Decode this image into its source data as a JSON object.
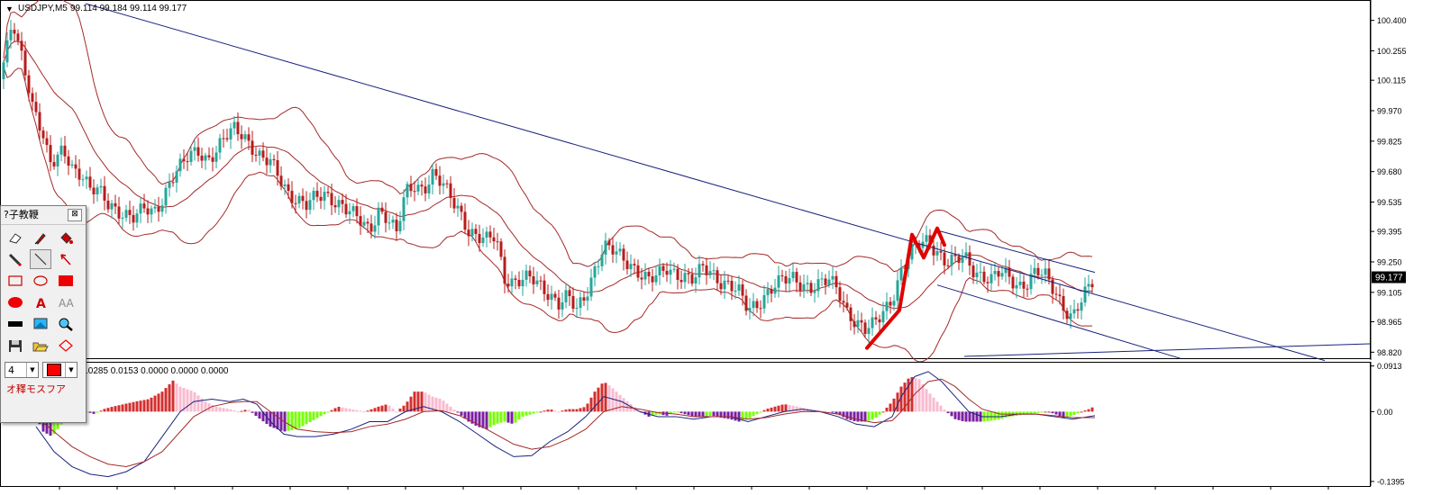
{
  "chart_data": {
    "type": "candlestick",
    "symbol_header": "USDJPY,M5",
    "ohlc_readout": "99.114 99.184 99.114 99.177",
    "price_axis": {
      "ticks": [
        "100.400",
        "100.255",
        "100.115",
        "99.970",
        "99.825",
        "99.680",
        "99.535",
        "99.395",
        "99.250",
        "99.105",
        "98.965",
        "98.820"
      ],
      "range": [
        98.8,
        100.48
      ],
      "current_price": "99.177"
    },
    "price_path": [
      [
        0,
        100.12
      ],
      [
        5,
        100.22
      ],
      [
        10,
        100.3
      ],
      [
        14,
        100.4
      ],
      [
        18,
        100.3
      ],
      [
        22,
        100.25
      ],
      [
        26,
        100.2
      ],
      [
        30,
        100.12
      ],
      [
        36,
        100.0
      ],
      [
        42,
        99.95
      ],
      [
        48,
        99.85
      ],
      [
        55,
        99.72
      ],
      [
        62,
        99.72
      ],
      [
        70,
        99.78
      ],
      [
        80,
        99.7
      ],
      [
        90,
        99.68
      ],
      [
        100,
        99.6
      ],
      [
        110,
        99.58
      ],
      [
        120,
        99.52
      ],
      [
        130,
        99.5
      ],
      [
        140,
        99.48
      ],
      [
        150,
        99.46
      ],
      [
        160,
        99.5
      ],
      [
        170,
        99.48
      ],
      [
        180,
        99.55
      ],
      [
        190,
        99.65
      ],
      [
        200,
        99.7
      ],
      [
        210,
        99.75
      ],
      [
        220,
        99.78
      ],
      [
        230,
        99.74
      ],
      [
        240,
        99.78
      ],
      [
        250,
        99.84
      ],
      [
        260,
        99.88
      ],
      [
        270,
        99.86
      ],
      [
        280,
        99.8
      ],
      [
        290,
        99.74
      ],
      [
        300,
        99.72
      ],
      [
        310,
        99.65
      ],
      [
        320,
        99.58
      ],
      [
        330,
        99.55
      ],
      [
        340,
        99.52
      ],
      [
        350,
        99.55
      ],
      [
        360,
        99.57
      ],
      [
        370,
        99.55
      ],
      [
        380,
        99.52
      ],
      [
        390,
        99.48
      ],
      [
        400,
        99.44
      ],
      [
        410,
        99.4
      ],
      [
        420,
        99.5
      ],
      [
        430,
        99.46
      ],
      [
        440,
        99.38
      ],
      [
        450,
        99.58
      ],
      [
        460,
        99.62
      ],
      [
        470,
        99.6
      ],
      [
        480,
        99.66
      ],
      [
        490,
        99.62
      ],
      [
        500,
        99.56
      ],
      [
        510,
        99.5
      ],
      [
        520,
        99.4
      ],
      [
        530,
        99.36
      ],
      [
        540,
        99.35
      ],
      [
        550,
        99.38
      ],
      [
        560,
        99.18
      ],
      [
        570,
        99.15
      ],
      [
        580,
        99.16
      ],
      [
        590,
        99.17
      ],
      [
        600,
        99.14
      ],
      [
        610,
        99.1
      ],
      [
        620,
        99.05
      ],
      [
        630,
        99.08
      ],
      [
        640,
        99.02
      ],
      [
        650,
        99.1
      ],
      [
        660,
        99.22
      ],
      [
        670,
        99.32
      ],
      [
        680,
        99.3
      ],
      [
        690,
        99.27
      ],
      [
        700,
        99.24
      ],
      [
        710,
        99.2
      ],
      [
        720,
        99.16
      ],
      [
        730,
        99.18
      ],
      [
        740,
        99.22
      ],
      [
        750,
        99.2
      ],
      [
        760,
        99.18
      ],
      [
        770,
        99.16
      ],
      [
        780,
        99.22
      ],
      [
        790,
        99.2
      ],
      [
        800,
        99.16
      ],
      [
        810,
        99.14
      ],
      [
        820,
        99.1
      ],
      [
        830,
        99.02
      ],
      [
        840,
        99.05
      ],
      [
        850,
        99.1
      ],
      [
        860,
        99.14
      ],
      [
        870,
        99.16
      ],
      [
        880,
        99.17
      ],
      [
        890,
        99.15
      ],
      [
        900,
        99.13
      ],
      [
        910,
        99.14
      ],
      [
        920,
        99.16
      ],
      [
        930,
        99.12
      ],
      [
        940,
        99.02
      ],
      [
        950,
        98.96
      ],
      [
        960,
        98.92
      ],
      [
        970,
        98.95
      ],
      [
        980,
        99.02
      ],
      [
        990,
        99.08
      ],
      [
        1000,
        99.2
      ],
      [
        1010,
        99.28
      ],
      [
        1020,
        99.34
      ],
      [
        1030,
        99.36
      ],
      [
        1040,
        99.3
      ],
      [
        1050,
        99.24
      ],
      [
        1060,
        99.25
      ],
      [
        1070,
        99.28
      ],
      [
        1080,
        99.22
      ],
      [
        1090,
        99.18
      ],
      [
        1100,
        99.16
      ],
      [
        1110,
        99.2
      ],
      [
        1120,
        99.18
      ],
      [
        1130,
        99.14
      ],
      [
        1140,
        99.15
      ],
      [
        1150,
        99.2
      ],
      [
        1160,
        99.18
      ],
      [
        1170,
        99.12
      ],
      [
        1180,
        99.04
      ],
      [
        1190,
        98.98
      ],
      [
        1200,
        99.06
      ],
      [
        1210,
        99.14
      ],
      [
        1215,
        99.18
      ]
    ],
    "red_trend_line": [
      [
        962,
        98.84
      ],
      [
        978,
        98.92
      ],
      [
        990,
        98.98
      ],
      [
        998,
        99.02
      ],
      [
        1012,
        99.38
      ],
      [
        1025,
        99.27
      ],
      [
        1040,
        99.41
      ],
      [
        1048,
        99.33
      ]
    ],
    "trendlines": [
      {
        "from": [
          95,
          100.48
        ],
        "to": [
          1470,
          98.78
        ]
      },
      {
        "from": [
          1040,
          99.4
        ],
        "to": [
          1215,
          99.2
        ]
      },
      {
        "from": [
          1040,
          99.14
        ],
        "to": [
          1310,
          98.79
        ]
      },
      {
        "from": [
          1070,
          98.8
        ],
        "to": [
          1520,
          98.86
        ]
      }
    ],
    "osc_header": ".0285 0.0153 0.0000 0.0000 0.0000",
    "osc_axis": {
      "ticks": [
        "0.0913",
        "0.00",
        "-0.1395"
      ],
      "range": [
        -0.145,
        0.096
      ]
    },
    "osc_histogram": [
      [
        0,
        0.0
      ],
      [
        40,
        -0.01
      ],
      [
        48,
        -0.04
      ],
      [
        58,
        -0.05
      ],
      [
        66,
        -0.03
      ],
      [
        75,
        -0.01
      ],
      [
        85,
        -0.005
      ],
      [
        95,
        0.0
      ],
      [
        105,
        -0.005
      ],
      [
        115,
        0.005
      ],
      [
        125,
        0.01
      ],
      [
        135,
        0.014
      ],
      [
        150,
        0.02
      ],
      [
        165,
        0.025
      ],
      [
        180,
        0.04
      ],
      [
        192,
        0.062
      ],
      [
        200,
        0.05
      ],
      [
        215,
        0.04
      ],
      [
        228,
        0.02
      ],
      [
        240,
        0.01
      ],
      [
        255,
        0.005
      ],
      [
        265,
        0.0
      ],
      [
        275,
        0.005
      ],
      [
        285,
        -0.01
      ],
      [
        300,
        -0.03
      ],
      [
        315,
        -0.04
      ],
      [
        330,
        -0.035
      ],
      [
        345,
        -0.02
      ],
      [
        360,
        -0.005
      ],
      [
        375,
        0.01
      ],
      [
        390,
        0.005
      ],
      [
        405,
        0.0
      ],
      [
        420,
        0.01
      ],
      [
        430,
        0.015
      ],
      [
        440,
        0.0
      ],
      [
        450,
        0.015
      ],
      [
        460,
        0.04
      ],
      [
        470,
        0.04
      ],
      [
        480,
        0.03
      ],
      [
        490,
        0.025
      ],
      [
        500,
        0.01
      ],
      [
        510,
        -0.005
      ],
      [
        520,
        -0.02
      ],
      [
        530,
        -0.03
      ],
      [
        540,
        -0.035
      ],
      [
        550,
        -0.025
      ],
      [
        560,
        -0.02
      ],
      [
        570,
        -0.025
      ],
      [
        580,
        -0.01
      ],
      [
        590,
        -0.005
      ],
      [
        600,
        0.0
      ],
      [
        610,
        0.005
      ],
      [
        620,
        0.0
      ],
      [
        630,
        0.005
      ],
      [
        640,
        0.005
      ],
      [
        650,
        0.01
      ],
      [
        660,
        0.04
      ],
      [
        670,
        0.06
      ],
      [
        678,
        0.05
      ],
      [
        690,
        0.03
      ],
      [
        700,
        0.015
      ],
      [
        710,
        0.0
      ],
      [
        720,
        -0.01
      ],
      [
        730,
        -0.005
      ],
      [
        740,
        -0.008
      ],
      [
        750,
        0.0
      ],
      [
        760,
        -0.005
      ],
      [
        770,
        -0.01
      ],
      [
        780,
        -0.01
      ],
      [
        790,
        -0.008
      ],
      [
        800,
        -0.012
      ],
      [
        810,
        -0.015
      ],
      [
        820,
        -0.02
      ],
      [
        830,
        -0.015
      ],
      [
        840,
        -0.005
      ],
      [
        850,
        0.005
      ],
      [
        860,
        0.01
      ],
      [
        870,
        0.015
      ],
      [
        880,
        0.012
      ],
      [
        890,
        0.008
      ],
      [
        900,
        0.005
      ],
      [
        910,
        0.002
      ],
      [
        920,
        0.0
      ],
      [
        930,
        -0.005
      ],
      [
        940,
        -0.015
      ],
      [
        950,
        -0.02
      ],
      [
        960,
        -0.02
      ],
      [
        970,
        -0.015
      ],
      [
        980,
        0.0
      ],
      [
        990,
        0.02
      ],
      [
        1000,
        0.05
      ],
      [
        1010,
        0.07
      ],
      [
        1020,
        0.065
      ],
      [
        1030,
        0.04
      ],
      [
        1040,
        0.02
      ],
      [
        1050,
        0.0
      ],
      [
        1060,
        -0.015
      ],
      [
        1070,
        -0.02
      ],
      [
        1080,
        -0.02
      ],
      [
        1090,
        -0.02
      ],
      [
        1100,
        -0.018
      ],
      [
        1110,
        -0.015
      ],
      [
        1120,
        -0.01
      ],
      [
        1130,
        -0.008
      ],
      [
        1140,
        -0.005
      ],
      [
        1150,
        -0.003
      ],
      [
        1160,
        0.0
      ],
      [
        1170,
        -0.004
      ],
      [
        1180,
        -0.012
      ],
      [
        1190,
        -0.008
      ],
      [
        1200,
        0.0
      ],
      [
        1210,
        0.006
      ],
      [
        1215,
        0.012
      ]
    ],
    "osc_line_1": [
      [
        40,
        -0.03
      ],
      [
        60,
        -0.08
      ],
      [
        80,
        -0.11
      ],
      [
        100,
        -0.125
      ],
      [
        120,
        -0.13
      ],
      [
        140,
        -0.12
      ],
      [
        160,
        -0.1
      ],
      [
        180,
        -0.05
      ],
      [
        200,
        0.0
      ],
      [
        215,
        0.02
      ],
      [
        235,
        0.025
      ],
      [
        255,
        0.02
      ],
      [
        270,
        0.025
      ],
      [
        285,
        0.015
      ],
      [
        300,
        -0.02
      ],
      [
        315,
        -0.045
      ],
      [
        330,
        -0.05
      ],
      [
        350,
        -0.05
      ],
      [
        370,
        -0.045
      ],
      [
        390,
        -0.035
      ],
      [
        410,
        -0.02
      ],
      [
        430,
        -0.02
      ],
      [
        450,
        0.0
      ],
      [
        470,
        0.01
      ],
      [
        490,
        0.0
      ],
      [
        510,
        -0.02
      ],
      [
        530,
        -0.045
      ],
      [
        550,
        -0.07
      ],
      [
        570,
        -0.09
      ],
      [
        590,
        -0.088
      ],
      [
        610,
        -0.06
      ],
      [
        630,
        -0.04
      ],
      [
        650,
        -0.01
      ],
      [
        670,
        0.03
      ],
      [
        690,
        0.02
      ],
      [
        710,
        0.0
      ],
      [
        730,
        -0.01
      ],
      [
        750,
        -0.01
      ],
      [
        770,
        -0.015
      ],
      [
        790,
        -0.01
      ],
      [
        810,
        -0.01
      ],
      [
        830,
        -0.02
      ],
      [
        850,
        -0.01
      ],
      [
        870,
        0.0
      ],
      [
        890,
        0.005
      ],
      [
        910,
        0.0
      ],
      [
        930,
        -0.01
      ],
      [
        950,
        -0.025
      ],
      [
        970,
        -0.03
      ],
      [
        990,
        -0.01
      ],
      [
        1000,
        0.03
      ],
      [
        1015,
        0.07
      ],
      [
        1030,
        0.08
      ],
      [
        1045,
        0.06
      ],
      [
        1060,
        0.03
      ],
      [
        1075,
        0.0
      ],
      [
        1090,
        -0.01
      ],
      [
        1110,
        -0.01
      ],
      [
        1130,
        -0.005
      ],
      [
        1150,
        -0.005
      ],
      [
        1170,
        -0.01
      ],
      [
        1190,
        -0.015
      ],
      [
        1215,
        -0.008
      ]
    ],
    "osc_line_2": [
      [
        40,
        -0.01
      ],
      [
        60,
        -0.04
      ],
      [
        80,
        -0.07
      ],
      [
        100,
        -0.09
      ],
      [
        120,
        -0.105
      ],
      [
        140,
        -0.11
      ],
      [
        160,
        -0.1
      ],
      [
        180,
        -0.08
      ],
      [
        200,
        -0.04
      ],
      [
        215,
        -0.01
      ],
      [
        235,
        0.01
      ],
      [
        255,
        0.018
      ],
      [
        270,
        0.02
      ],
      [
        285,
        0.02
      ],
      [
        300,
        0.0
      ],
      [
        315,
        -0.02
      ],
      [
        330,
        -0.035
      ],
      [
        350,
        -0.04
      ],
      [
        370,
        -0.042
      ],
      [
        390,
        -0.04
      ],
      [
        410,
        -0.03
      ],
      [
        430,
        -0.025
      ],
      [
        450,
        -0.015
      ],
      [
        470,
        0.0
      ],
      [
        490,
        0.002
      ],
      [
        510,
        -0.008
      ],
      [
        530,
        -0.025
      ],
      [
        550,
        -0.045
      ],
      [
        570,
        -0.065
      ],
      [
        590,
        -0.075
      ],
      [
        610,
        -0.07
      ],
      [
        630,
        -0.055
      ],
      [
        650,
        -0.035
      ],
      [
        670,
        0.0
      ],
      [
        690,
        0.01
      ],
      [
        710,
        0.005
      ],
      [
        730,
        -0.002
      ],
      [
        750,
        -0.005
      ],
      [
        770,
        -0.01
      ],
      [
        790,
        -0.01
      ],
      [
        810,
        -0.01
      ],
      [
        830,
        -0.015
      ],
      [
        850,
        -0.012
      ],
      [
        870,
        -0.005
      ],
      [
        890,
        0.0
      ],
      [
        910,
        0.0
      ],
      [
        930,
        -0.005
      ],
      [
        950,
        -0.015
      ],
      [
        970,
        -0.022
      ],
      [
        990,
        -0.018
      ],
      [
        1000,
        0.0
      ],
      [
        1015,
        0.035
      ],
      [
        1030,
        0.06
      ],
      [
        1045,
        0.065
      ],
      [
        1060,
        0.05
      ],
      [
        1075,
        0.025
      ],
      [
        1090,
        0.005
      ],
      [
        1110,
        -0.005
      ],
      [
        1130,
        -0.005
      ],
      [
        1150,
        -0.005
      ],
      [
        1170,
        -0.008
      ],
      [
        1190,
        -0.012
      ],
      [
        1215,
        -0.012
      ]
    ],
    "colors": {
      "candle_up": "#26a69a",
      "candle_down": "#b71c1c",
      "band": "#a52a2a",
      "trendline": "#1a237e",
      "red_line": "#e00000",
      "hist_pos_strong": "#d32f2f",
      "hist_pos_weak": "#f8bbd0",
      "hist_neg_strong": "#7b1fa2",
      "hist_neg_weak": "#76ff03",
      "osc_line_1": "#1a237e",
      "osc_line_2": "#a52a2a"
    }
  },
  "toolbox": {
    "title": "?子教鞭",
    "close_glyph": "⊠",
    "width_value": "4",
    "label": "オ釋モスフア",
    "tools": [
      {
        "name": "eraser-icon",
        "selected": false
      },
      {
        "name": "pen-icon",
        "selected": false
      },
      {
        "name": "paint-bucket-icon",
        "selected": false
      },
      {
        "name": "pencil-icon",
        "selected": false
      },
      {
        "name": "line-icon",
        "selected": true
      },
      {
        "name": "arrow-icon",
        "selected": false
      },
      {
        "name": "rectangle-icon",
        "selected": false
      },
      {
        "name": "ellipse-icon",
        "selected": false
      },
      {
        "name": "filled-rectangle-icon",
        "selected": false
      },
      {
        "name": "filled-ellipse-icon",
        "selected": false
      },
      {
        "name": "text-a-icon",
        "selected": false
      },
      {
        "name": "text-aa-icon",
        "selected": false
      },
      {
        "name": "black-bar-icon",
        "selected": false
      },
      {
        "name": "screenshot-icon",
        "selected": false
      },
      {
        "name": "zoom-icon",
        "selected": false
      },
      {
        "name": "save-icon",
        "selected": false
      },
      {
        "name": "open-folder-icon",
        "selected": false
      },
      {
        "name": "diamond-icon",
        "selected": false
      }
    ]
  }
}
